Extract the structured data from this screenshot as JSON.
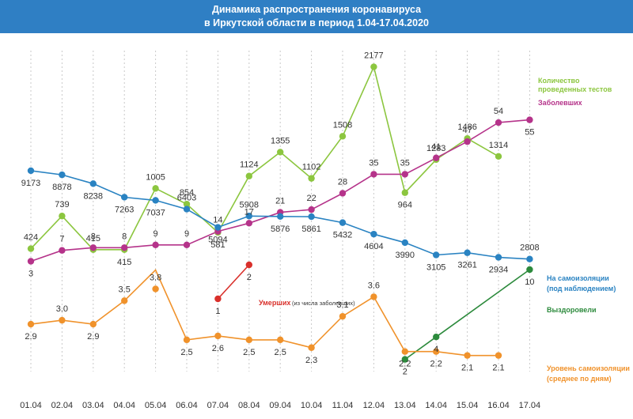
{
  "header": {
    "title_line1": "Динамика распространения коронавируса",
    "title_line2": "в Иркутской области в период  1.04-17.04.2020"
  },
  "colors": {
    "header_bg": "#2f7fc4",
    "tests": "#8cc63f",
    "cases": "#b5338a",
    "isolation": "#2a83c2",
    "deaths": "#d9302b",
    "recovered": "#2c8a3c",
    "isolation_level": "#f0922b"
  },
  "chart_data": {
    "type": "line",
    "x": [
      "01.04",
      "02.04",
      "03.04",
      "04.04",
      "05.04",
      "06.04",
      "07.04",
      "08.04",
      "09.04",
      "10.04",
      "11.04",
      "12.04",
      "13.04",
      "14.04",
      "15.04",
      "16.04",
      "17.04"
    ],
    "series": [
      {
        "key": "tests",
        "name_lines": [
          "Количество",
          "проведенных тестов"
        ],
        "values": [
          424,
          739,
          415,
          415,
          1005,
          854,
          581,
          1124,
          1355,
          1102,
          1508,
          2177,
          964,
          1283,
          1486,
          1314,
          null
        ],
        "labels": [
          "424",
          "739",
          "415",
          "415",
          "1005",
          "854",
          "581",
          "1124",
          "1355",
          "1102",
          "1508",
          "2177",
          "964",
          "1283",
          "1486",
          "1314",
          ""
        ]
      },
      {
        "key": "cases",
        "name_lines": [
          "Заболевших"
        ],
        "values": [
          3,
          7,
          8,
          8,
          9,
          9,
          14,
          17,
          21,
          22,
          28,
          35,
          35,
          41,
          47,
          54,
          55
        ],
        "labels": [
          "3",
          "7",
          "8",
          "8",
          "9",
          "9",
          "14",
          "17",
          "21",
          "22",
          "28",
          "35",
          "35",
          "41",
          "47",
          "54",
          "55"
        ]
      },
      {
        "key": "isolation",
        "name_lines": [
          "На самоизоляции",
          "(под наблюдением)"
        ],
        "values": [
          9173,
          8878,
          8238,
          7263,
          7037,
          6403,
          5094,
          5908,
          5876,
          5861,
          5432,
          4604,
          3990,
          3105,
          3261,
          2934,
          2808
        ],
        "labels": [
          "9173",
          "8878",
          "8238",
          "7263",
          "7037",
          "6403",
          "5094",
          "5908",
          "5876",
          "5861",
          "5432",
          "4604",
          "3990",
          "3105",
          "3261",
          "2934",
          "2808"
        ]
      },
      {
        "key": "deaths",
        "name": "Умерших",
        "name_note": "(из числа заболевших)",
        "values": [
          null,
          null,
          null,
          null,
          null,
          null,
          1,
          2,
          null,
          null,
          null,
          null,
          null,
          null,
          null,
          null,
          null
        ],
        "labels": [
          "",
          "",
          "",
          "",
          "",
          "",
          "1",
          "2",
          "",
          "",
          "",
          "",
          "",
          "",
          "",
          "",
          ""
        ]
      },
      {
        "key": "recovered",
        "name_lines": [
          "Выздоровели"
        ],
        "values": [
          null,
          null,
          null,
          null,
          null,
          null,
          null,
          null,
          null,
          null,
          null,
          null,
          2,
          4,
          null,
          null,
          10
        ],
        "labels": [
          "",
          "",
          "",
          "",
          "",
          "",
          "",
          "",
          "",
          "",
          "",
          "",
          "2",
          "4",
          "",
          "",
          "10"
        ]
      },
      {
        "key": "isolation_level",
        "name_lines": [
          "Уровень самоизоляции",
          "(среднее по дням)"
        ],
        "values": [
          2.9,
          3.0,
          2.9,
          3.5,
          3.8,
          2.5,
          2.6,
          2.5,
          2.5,
          2.3,
          3.1,
          3.6,
          2.2,
          2.2,
          2.1,
          2.1,
          null
        ],
        "labels": [
          "2.9",
          "3.0",
          "2.9",
          "3.5",
          "3.8",
          "2.5",
          "2.6",
          "2.5",
          "2.5",
          "2.3",
          "3.1",
          "3.6",
          "2.2",
          "2.2",
          "2.1",
          "2.1",
          ""
        ]
      }
    ],
    "grid": "vertical dashed",
    "legend": "right"
  }
}
